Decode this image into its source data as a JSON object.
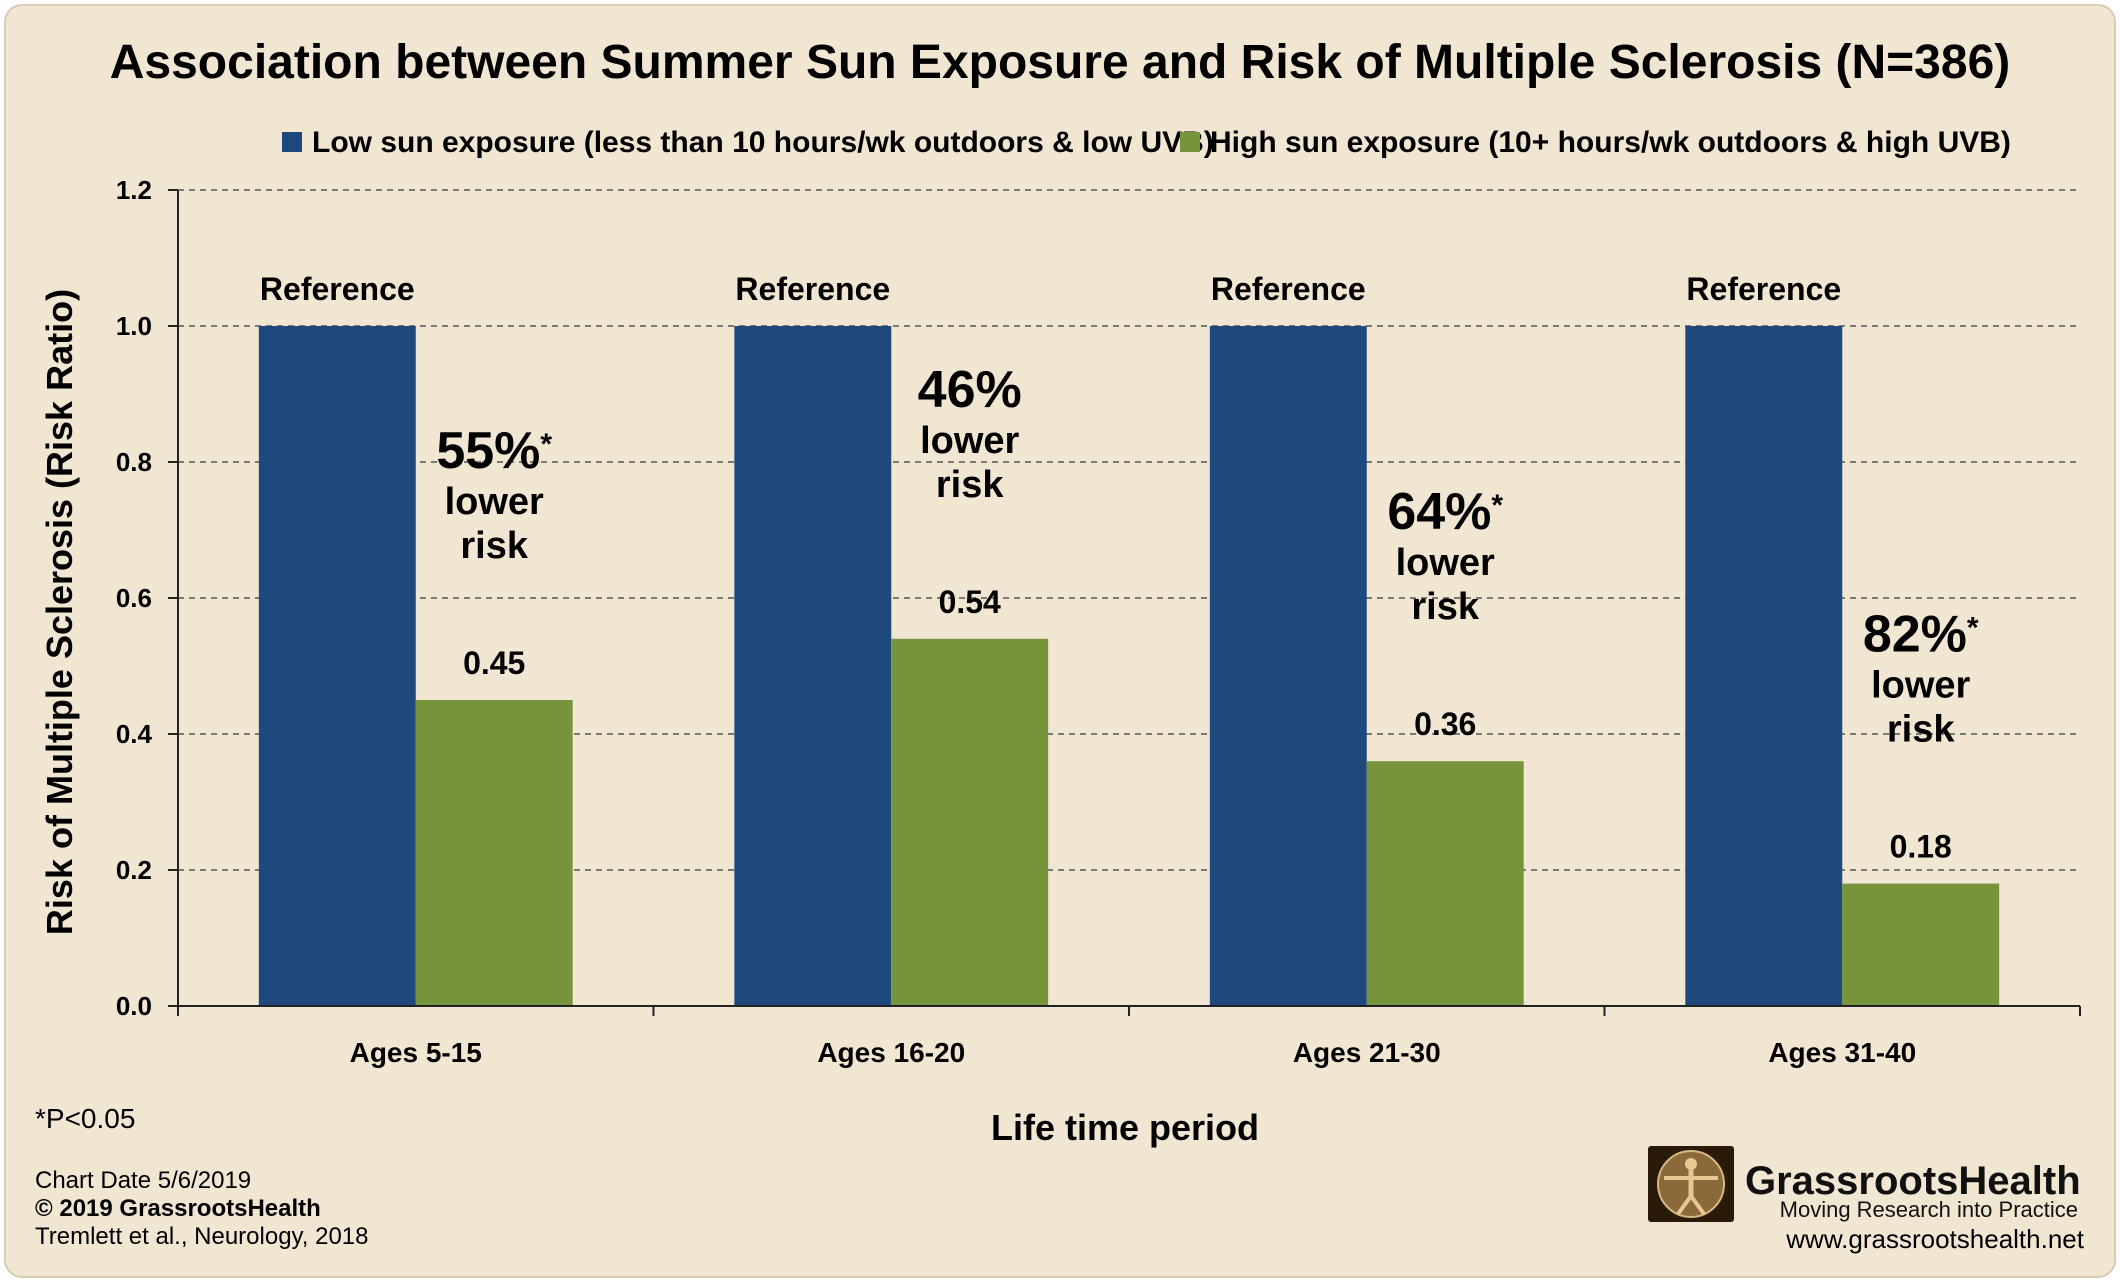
{
  "chart_data": {
    "type": "bar",
    "title": "Association between Summer Sun Exposure and Risk of Multiple Sclerosis (N=386)",
    "xlabel": "Life time period",
    "ylabel": "Risk of Multiple Sclerosis (Risk Ratio)",
    "ylim": [
      0,
      1.2
    ],
    "yticks": [
      "0.0",
      "0.2",
      "0.4",
      "0.6",
      "0.8",
      "1.0",
      "1.2"
    ],
    "grid": "dashed horizontal",
    "legend_position": "top",
    "categories": [
      "Ages 5-15",
      "Ages 16-20",
      "Ages 21-30",
      "Ages 31-40"
    ],
    "series": [
      {
        "name": "Low sun exposure (less than 10 hours/wk outdoors & low UVB)",
        "color": "#1f497d",
        "values": [
          1.0,
          1.0,
          1.0,
          1.0
        ],
        "labels": [
          "Reference",
          "Reference",
          "Reference",
          "Reference"
        ]
      },
      {
        "name": "High sun exposure (10+ hours/wk outdoors & high UVB)",
        "color": "#77933c",
        "values": [
          0.45,
          0.54,
          0.36,
          0.18
        ],
        "labels": [
          "0.45",
          "0.54",
          "0.36",
          "0.18"
        ]
      }
    ],
    "annotations": [
      {
        "category": "Ages 5-15",
        "percent": "55%",
        "mark": "*",
        "line1": "lower",
        "line2": "risk"
      },
      {
        "category": "Ages 16-20",
        "percent": "46%",
        "mark": "",
        "line1": "lower",
        "line2": "risk"
      },
      {
        "category": "Ages 21-30",
        "percent": "64%",
        "mark": "*",
        "line1": "lower",
        "line2": "risk"
      },
      {
        "category": "Ages 31-40",
        "percent": "82%",
        "mark": "*",
        "line1": "lower",
        "line2": "risk"
      }
    ]
  },
  "footer": {
    "significance": "*P<0.05",
    "chart_date": "Chart Date 5/6/2019",
    "copyright": "© 2019 GrassrootsHealth",
    "citation": "Tremlett et al., Neurology, 2018"
  },
  "brand": {
    "name": "GrassrootsHealth",
    "tagline": "Moving Research into Practice",
    "url": "www.grassrootshealth.net",
    "logo_icon": "vitruvian-man-icon"
  }
}
